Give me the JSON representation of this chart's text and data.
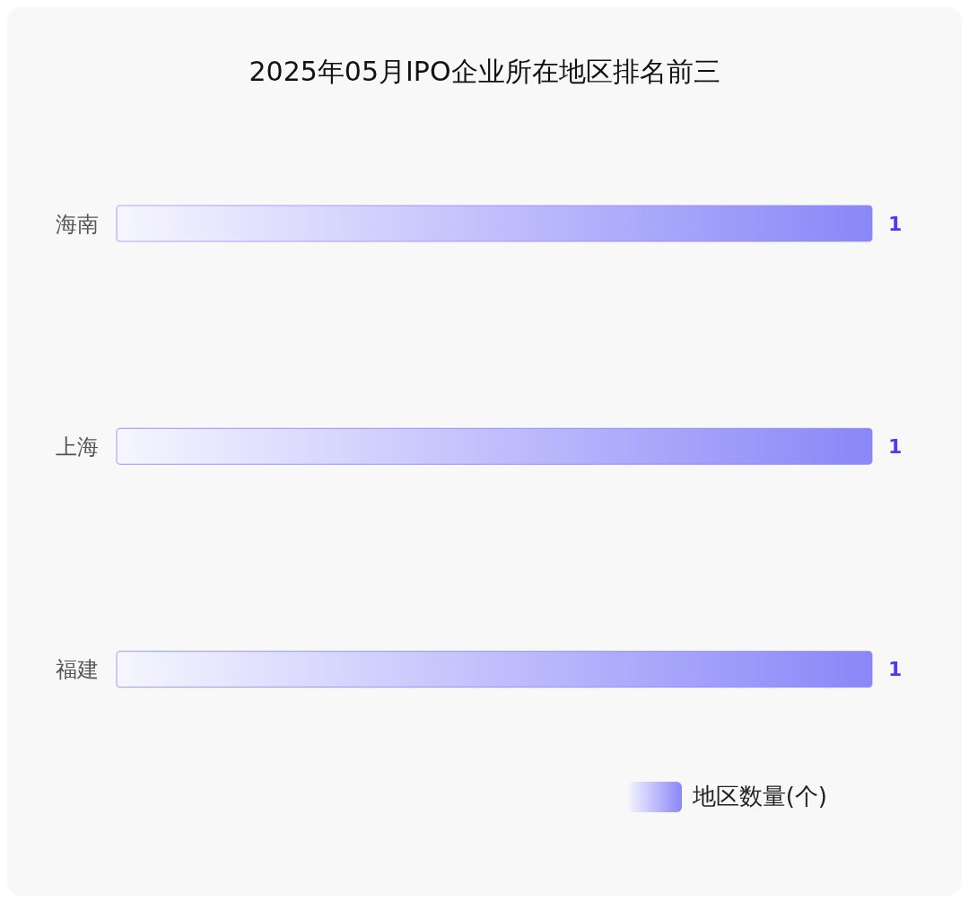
{
  "chart_data": {
    "type": "bar",
    "orientation": "horizontal",
    "title": "2025年05月IPO企业所在地区排名前三",
    "categories": [
      "海南",
      "上海",
      "福建"
    ],
    "series": [
      {
        "name": "地区数量(个)",
        "color": "#8a87f8",
        "values": [
          1,
          1,
          1
        ]
      }
    ],
    "data_labels": true,
    "grid": false,
    "legend": "bottom right",
    "tick_labels": "y"
  }
}
